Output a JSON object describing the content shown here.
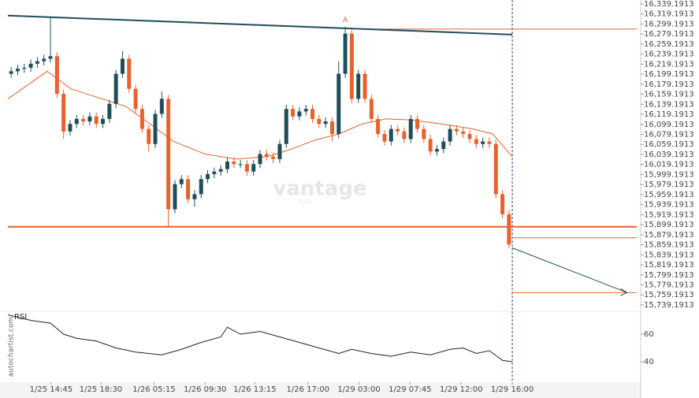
{
  "chart_data": {
    "type": "candlestick",
    "watermark": "vantage",
    "watermark_sub": "PLUS",
    "source": "autochartist.com",
    "annotation": "A",
    "up_color": "#1f4e5a",
    "down_color": "#e8622c",
    "open": [
      16200,
      16205,
      16210,
      16212,
      16220,
      16225,
      16230,
      16235,
      16160,
      16085,
      16100,
      16110,
      16105,
      16115,
      16100,
      16110,
      16140,
      16200,
      16230,
      16170,
      16130,
      16090,
      16060,
      16120,
      16150,
      15930,
      15980,
      15990,
      15950,
      15960,
      15990,
      16000,
      16005,
      16010,
      16025,
      16020,
      16020,
      16005,
      16020,
      16040,
      16035,
      16030,
      16060,
      16130,
      16115,
      16125,
      16130,
      16110,
      16100,
      16105,
      16080,
      16200,
      16280,
      16150,
      16200,
      16150,
      16110,
      16080,
      16065,
      16090,
      16085,
      16070,
      16110,
      16090,
      16070,
      16045,
      16050,
      16065,
      16090,
      16085,
      16080,
      16070,
      16060,
      16065,
      16060,
      15960,
      15920
    ],
    "high": [
      16213,
      16218,
      16220,
      16228,
      16233,
      16238,
      16312,
      16243,
      16168,
      16108,
      16118,
      16118,
      16123,
      16123,
      16118,
      16148,
      16208,
      16245,
      16238,
      16178,
      16138,
      16098,
      16128,
      16165,
      16158,
      15988,
      15998,
      15998,
      15968,
      15998,
      16008,
      16013,
      16018,
      16033,
      16033,
      16028,
      16028,
      16028,
      16048,
      16048,
      16043,
      16068,
      16138,
      16138,
      16133,
      16138,
      16138,
      16118,
      16113,
      16113,
      16225,
      16294,
      16288,
      16208,
      16208,
      16158,
      16118,
      16088,
      16098,
      16098,
      16093,
      16118,
      16118,
      16098,
      16078,
      16058,
      16073,
      16098,
      16098,
      16093,
      16088,
      16078,
      16073,
      16073,
      16068,
      15968,
      15928
    ],
    "low": [
      16192,
      16197,
      16202,
      16204,
      16212,
      16217,
      16222,
      16152,
      16070,
      16077,
      16092,
      16097,
      16097,
      16092,
      16092,
      16102,
      16132,
      16192,
      16162,
      16122,
      16082,
      16045,
      16052,
      16112,
      15896,
      15922,
      15972,
      15942,
      15935,
      15952,
      15982,
      15992,
      15997,
      16002,
      16012,
      16012,
      15997,
      15997,
      16012,
      16027,
      16022,
      16022,
      16052,
      16107,
      16107,
      16117,
      16102,
      16092,
      16092,
      16065,
      16072,
      16192,
      16142,
      16142,
      16142,
      16102,
      16072,
      16057,
      16057,
      16077,
      16062,
      16062,
      16082,
      16062,
      16037,
      16037,
      16042,
      16057,
      16077,
      16072,
      16062,
      16052,
      16052,
      16052,
      15952,
      15912,
      15852
    ],
    "close": [
      16205,
      16210,
      16212,
      16220,
      16225,
      16230,
      16235,
      16160,
      16085,
      16100,
      16110,
      16105,
      16115,
      16100,
      16110,
      16140,
      16200,
      16230,
      16170,
      16130,
      16090,
      16060,
      16120,
      16150,
      15930,
      15980,
      15990,
      15950,
      15960,
      15990,
      16000,
      16005,
      16010,
      16025,
      16020,
      16020,
      16005,
      16020,
      16040,
      16035,
      16030,
      16060,
      16130,
      16115,
      16125,
      16130,
      16110,
      16100,
      16105,
      16080,
      16200,
      16280,
      16150,
      16200,
      16150,
      16110,
      16080,
      16065,
      16090,
      16085,
      16070,
      16110,
      16090,
      16070,
      16045,
      16050,
      16065,
      16090,
      16085,
      16080,
      16070,
      16060,
      16065,
      16060,
      15960,
      15920,
      15860
    ],
    "ma": {
      "color": "#e8622c",
      "x": [
        -0.5,
        5.5,
        9.1,
        13.9,
        17.5,
        21.2,
        24.8,
        29.6,
        34.4,
        39.2,
        42.8,
        46.4,
        50.0,
        53.6,
        57.2,
        60.9,
        65.7,
        70.5,
        73.5,
        76.5
      ],
      "values": [
        16150,
        16205,
        16170,
        16150,
        16135,
        16100,
        16065,
        16040,
        16030,
        16035,
        16050,
        16068,
        16080,
        16100,
        16110,
        16108,
        16100,
        16090,
        16080,
        16035
      ]
    },
    "trendline": {
      "color": "#1f4e5a",
      "x": [
        -0.5,
        76.5
      ],
      "values": [
        16316,
        16278
      ]
    },
    "levels": [
      {
        "value": 15895,
        "x": [
          -0.5,
          95.5
        ],
        "color": "#e8622c"
      },
      {
        "value": 16289,
        "x": [
          52.5,
          95.5
        ],
        "color": "#e8622c"
      },
      {
        "value": 15873,
        "x": [
          76.5,
          95.5
        ],
        "color": "#e8622c"
      },
      {
        "value": 15764,
        "x": [
          76.5,
          95.5
        ],
        "color": "#e8622c"
      }
    ],
    "projection": {
      "color": "#1f4e5a",
      "x": [
        76.5,
        94
      ],
      "values": [
        15853,
        15764
      ]
    },
    "xlim": [
      -0.5,
      95.5
    ],
    "ylim": [
      15726.6,
      16347.0
    ],
    "xticks": [
      {
        "value": 6.1,
        "label": "1/25 14:45"
      },
      {
        "value": 13.7,
        "label": "1/25 18:30"
      },
      {
        "value": 21.8,
        "label": "1/26 05:15"
      },
      {
        "value": 29.6,
        "label": "1/26 09:30"
      },
      {
        "value": 37.2,
        "label": "1/26 13:15"
      },
      {
        "value": 45.3,
        "label": "1/26 17:00"
      },
      {
        "value": 53.1,
        "label": "1/29 03:00"
      },
      {
        "value": 60.9,
        "label": "1/29 07:45"
      },
      {
        "value": 68.7,
        "label": "1/29 12:00"
      },
      {
        "value": 76.5,
        "label": "1/29 16:00"
      }
    ],
    "yticks": [
      {
        "value": 16339.1913,
        "label": "16,339.1913"
      },
      {
        "value": 16319.1913,
        "label": "16,319.1913"
      },
      {
        "value": 16299.1913,
        "label": "16,299.1913"
      },
      {
        "value": 16279.1913,
        "label": "16,279.1913"
      },
      {
        "value": 16259.1913,
        "label": "16,259.1913"
      },
      {
        "value": 16239.1913,
        "label": "16,239.1913"
      },
      {
        "value": 16219.1913,
        "label": "16,219.1913"
      },
      {
        "value": 16199.1913,
        "label": "16,199.1913"
      },
      {
        "value": 16179.1913,
        "label": "16,179.1913"
      },
      {
        "value": 16159.1913,
        "label": "16,159.1913"
      },
      {
        "value": 16139.1913,
        "label": "16,139.1913"
      },
      {
        "value": 16119.1913,
        "label": "16,119.1913"
      },
      {
        "value": 16099.1913,
        "label": "16,099.1913"
      },
      {
        "value": 16079.1913,
        "label": "16,079.1913"
      },
      {
        "value": 16059.1913,
        "label": "16,059.1913"
      },
      {
        "value": 16039.1913,
        "label": "16,039.1913"
      },
      {
        "value": 16019.1913,
        "label": "16,019.1913"
      },
      {
        "value": 15999.1913,
        "label": "15,999.1913"
      },
      {
        "value": 15979.1913,
        "label": "15,979.1913"
      },
      {
        "value": 15959.1913,
        "label": "15,959.1913"
      },
      {
        "value": 15939.1913,
        "label": "15,939.1913"
      },
      {
        "value": 15919.1913,
        "label": "15,919.1913"
      },
      {
        "value": 15899.1913,
        "label": "15,899.1913"
      },
      {
        "value": 15879.1913,
        "label": "15,879.1913"
      },
      {
        "value": 15859.1913,
        "label": "15,859.1913"
      },
      {
        "value": 15839.1913,
        "label": "15,839.1913"
      },
      {
        "value": 15819.1913,
        "label": "15,819.1913"
      },
      {
        "value": 15799.1913,
        "label": "15,799.1913"
      },
      {
        "value": 15779.1913,
        "label": "15,779.1913"
      },
      {
        "value": 15759.1913,
        "label": "15,759.1913"
      },
      {
        "value": 15739.1913,
        "label": "15,739.1913"
      }
    ],
    "rsi": {
      "title": "RSI",
      "color": "#222",
      "ylim": [
        25.1,
        76.6
      ],
      "yticks": [
        60,
        40
      ],
      "x": [
        -0.5,
        3,
        6,
        8,
        10,
        13,
        16,
        19,
        21,
        23,
        26,
        29,
        32,
        33,
        35,
        38,
        41,
        44,
        47,
        50,
        52,
        55,
        58,
        61,
        64,
        67,
        69,
        71,
        73,
        75,
        76.5
      ],
      "values": [
        74,
        70,
        68,
        60,
        57,
        55,
        50,
        47,
        46,
        45,
        49,
        54,
        58,
        65,
        60,
        62,
        58,
        54,
        50,
        46,
        49,
        46,
        44,
        47,
        45,
        49,
        50,
        46,
        48,
        41,
        40
      ]
    }
  }
}
